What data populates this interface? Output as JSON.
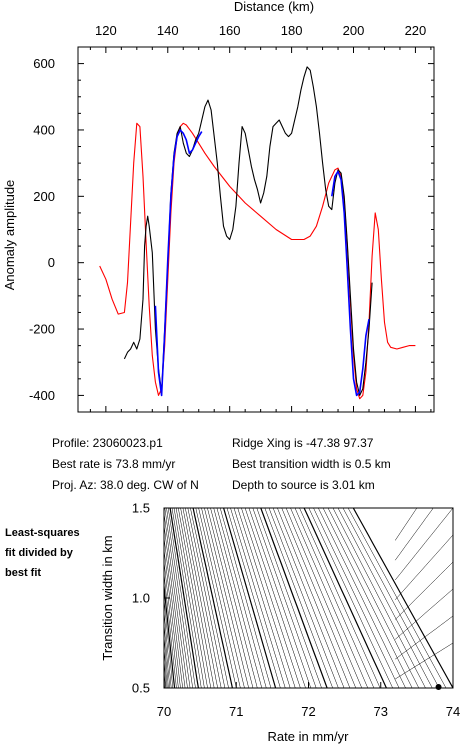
{
  "chart_data": [
    {
      "type": "line",
      "title": "",
      "xlabel": "Distance (km)",
      "ylabel": "Anomaly amplitude",
      "xlim": [
        111,
        226
      ],
      "ylim": [
        -450,
        650
      ],
      "xticks": [
        120,
        140,
        160,
        180,
        200,
        220
      ],
      "yticks": [
        -400,
        -200,
        0,
        200,
        400,
        600
      ],
      "x_axis_position": "top",
      "grid": false,
      "colors": {
        "observed": "#000000",
        "model": "#ff0000",
        "fit_window": "#0000ff"
      },
      "series": [
        {
          "key": "observed",
          "x": [
            126,
            127,
            128,
            129,
            130,
            131,
            132,
            132.5,
            133,
            133.5,
            134,
            135,
            136,
            137,
            138,
            139,
            140,
            141,
            142,
            143,
            144,
            145,
            146,
            147,
            148,
            149,
            150,
            151,
            152,
            153,
            154,
            155,
            156,
            157,
            158,
            159,
            160,
            161,
            162,
            163,
            164,
            165,
            166,
            167,
            168,
            169,
            170,
            171,
            172,
            173,
            174,
            175,
            176,
            177,
            178,
            179,
            180,
            181,
            182,
            183,
            184,
            185,
            186,
            187,
            188,
            189,
            190,
            191,
            192,
            193,
            194,
            195,
            196,
            197,
            198,
            199,
            200,
            201,
            202,
            203,
            204,
            205,
            206
          ],
          "y": [
            -290,
            -270,
            -260,
            -240,
            -260,
            -230,
            -110,
            50,
            110,
            140,
            110,
            30,
            -200,
            -320,
            -390,
            -200,
            0,
            210,
            330,
            390,
            410,
            360,
            330,
            320,
            340,
            370,
            390,
            430,
            470,
            490,
            460,
            380,
            300,
            200,
            110,
            80,
            70,
            100,
            170,
            300,
            410,
            390,
            340,
            290,
            250,
            220,
            180,
            210,
            260,
            350,
            410,
            420,
            430,
            410,
            390,
            380,
            390,
            430,
            470,
            520,
            560,
            590,
            580,
            530,
            470,
            390,
            300,
            220,
            170,
            160,
            240,
            280,
            270,
            200,
            60,
            -100,
            -260,
            -360,
            -400,
            -380,
            -300,
            -200,
            -60
          ]
        },
        {
          "key": "model",
          "x": [
            118,
            120,
            122,
            124,
            126,
            127,
            128,
            129,
            130,
            131,
            132,
            133,
            134,
            135,
            136,
            137,
            138,
            139,
            140,
            141,
            142,
            143,
            144,
            145,
            146,
            148,
            150,
            152,
            155,
            160,
            165,
            170,
            175,
            180,
            184,
            186,
            188,
            190,
            192,
            194,
            195,
            196,
            197,
            198,
            199,
            200,
            201,
            202,
            203,
            204,
            205,
            206,
            207,
            208,
            209,
            210,
            211,
            212,
            214,
            216,
            218,
            220
          ],
          "y": [
            -10,
            -50,
            -110,
            -155,
            -150,
            -60,
            120,
            300,
            420,
            410,
            260,
            60,
            -130,
            -280,
            -360,
            -400,
            -380,
            -250,
            -50,
            150,
            300,
            380,
            410,
            420,
            415,
            390,
            360,
            330,
            290,
            230,
            180,
            140,
            100,
            70,
            70,
            80,
            110,
            170,
            240,
            280,
            285,
            260,
            190,
            50,
            -120,
            -280,
            -380,
            -410,
            -400,
            -330,
            -180,
            20,
            150,
            100,
            -50,
            -180,
            -240,
            -255,
            -260,
            -255,
            -250,
            -250
          ]
        },
        {
          "key": "fit_window",
          "x": [
            136,
            137,
            138,
            139,
            140,
            141,
            142,
            143,
            144,
            145,
            146,
            147,
            148,
            149,
            150,
            151
          ],
          "y": [
            -130,
            -330,
            -400,
            -210,
            10,
            200,
            320,
            380,
            400,
            390,
            370,
            330,
            340,
            360,
            380,
            395
          ]
        },
        {
          "key": "fit_window",
          "x": [
            193,
            194,
            195,
            196,
            197,
            198,
            199,
            200,
            201,
            202,
            203,
            204,
            205
          ],
          "y": [
            200,
            260,
            275,
            250,
            150,
            -20,
            -200,
            -350,
            -400,
            -390,
            -320,
            -220,
            -170
          ]
        }
      ]
    },
    {
      "type": "contour",
      "title": "",
      "xlabel": "Rate in mm/yr",
      "ylabel": "Transition width in km",
      "xlim": [
        70,
        74
      ],
      "ylim": [
        0.5,
        1.5
      ],
      "xticks": [
        70,
        71,
        72,
        73,
        74
      ],
      "yticks": [
        0.5,
        1.0,
        1.5
      ],
      "tick_labels_x": [
        "70",
        "71",
        "72",
        "73",
        "74"
      ],
      "tick_labels_y": [
        "0.5",
        "1.0",
        "1.5"
      ],
      "best_fit_point": {
        "x": 73.8,
        "y": 0.5
      },
      "grid": false
    }
  ],
  "info": {
    "profile": "Profile: 23060023.p1",
    "best_rate": "Best rate is 73.8 mm/yr",
    "proj_az": "Proj. Az: 38.0 deg. CW of N",
    "ridge_xing": "Ridge Xing is -47.38 97.37",
    "best_width": "Best transition width is 0.5 km",
    "depth": "Depth to source is   3.01 km"
  },
  "contour_caption": {
    "line1": "Least-squares",
    "line2": "fit divided by",
    "line3": "best fit"
  }
}
